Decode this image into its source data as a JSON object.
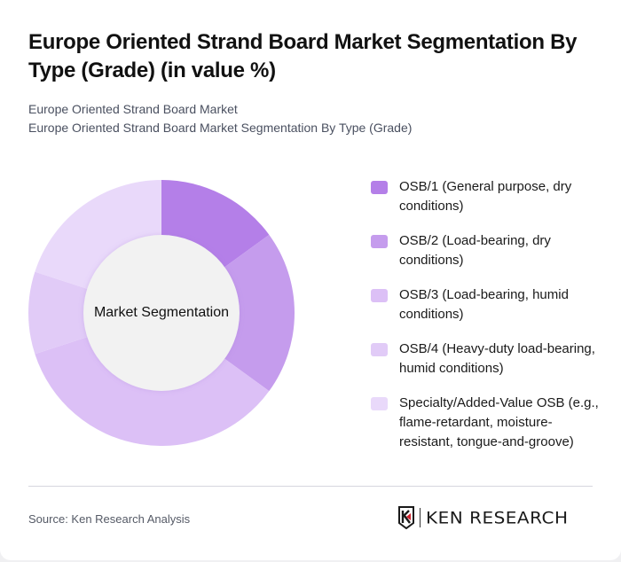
{
  "header": {
    "title": "Europe Oriented Strand Board Market Segmentation By Type (Grade) (in value %)",
    "subtitle_lines": [
      "Europe Oriented Strand Board Market",
      "Europe Oriented Strand Board Market Segmentation By Type (Grade)"
    ]
  },
  "chart_data": {
    "type": "pie",
    "variant": "donut",
    "title": "Europe Oriented Strand Board Market Segmentation By Type (Grade) (in value %)",
    "center_label": "Market Segmentation",
    "categories": [
      "OSB/1 (General purpose, dry conditions)",
      "OSB/2 (Load-bearing, dry conditions)",
      "OSB/3 (Load-bearing, humid conditions)",
      "OSB/4 (Heavy-duty load-bearing, humid conditions)",
      "Specialty/Added-Value OSB (e.g., flame-retardant, moisture-resistant, tongue-and-groove)"
    ],
    "values": [
      15,
      20,
      35,
      10,
      20
    ],
    "colors": [
      "#b47fe8",
      "#c59ced",
      "#dcc0f6",
      "#e1cbf7",
      "#e9d9fa"
    ],
    "legend_position": "right",
    "start_angle": "top, clockwise"
  },
  "legend": {
    "items": [
      {
        "label": "OSB/1 (General purpose, dry conditions)",
        "color": "#b47fe8"
      },
      {
        "label": "OSB/2 (Load-bearing, dry conditions)",
        "color": "#c59ced"
      },
      {
        "label": "OSB/3 (Load-bearing, humid conditions)",
        "color": "#dcc0f6"
      },
      {
        "label": "OSB/4 (Heavy-duty load-bearing, humid conditions)",
        "color": "#e1cbf7"
      },
      {
        "label": "Specialty/Added-Value OSB (e.g., flame-retardant, moisture-resistant, tongue-and-groove)",
        "color": "#e9d9fa"
      }
    ]
  },
  "footer": {
    "source": "Source: Ken Research Analysis",
    "logo_text": "KEN RESEARCH"
  }
}
